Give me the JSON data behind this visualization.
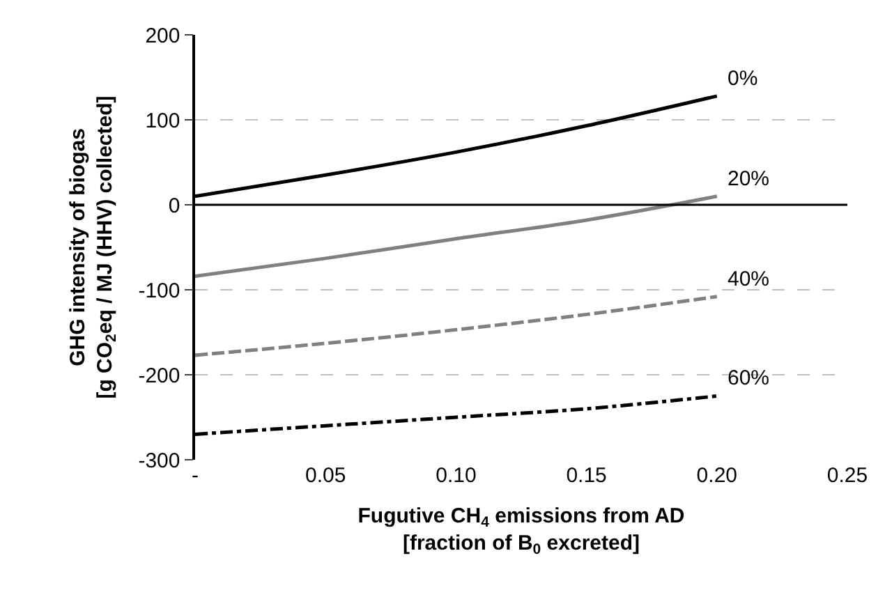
{
  "chart_data": {
    "type": "line",
    "xlabel": "Fugutive CH$_{4}$ emissions from AD\n[fraction of B$_{0}$ excreted]",
    "ylabel": "GHG intensity of biogas\n[g CO$_{2}$eq / MJ (HHV) collected]",
    "x": [
      0,
      0.05,
      0.1,
      0.15,
      0.2
    ],
    "series": [
      {
        "name": "0%",
        "color": "#000000",
        "line_style": "solid",
        "values": [
          10,
          35,
          62,
          93,
          128
        ]
      },
      {
        "name": "20%",
        "color": "#808080",
        "line_style": "solid",
        "values": [
          -84,
          -63,
          -40,
          -18,
          10
        ]
      },
      {
        "name": "40%",
        "color": "#808080",
        "line_style": "dashed",
        "values": [
          -177,
          -163,
          -147,
          -129,
          -108
        ]
      },
      {
        "name": "60%",
        "color": "#000000",
        "line_style": "dashdot",
        "values": [
          -270,
          -260,
          -250,
          -240,
          -225
        ]
      }
    ],
    "xlim": [
      0,
      0.25
    ],
    "xticks": [
      {
        "value": 0,
        "label": "-"
      },
      {
        "value": 0.05,
        "label": "0.05"
      },
      {
        "value": 0.1,
        "label": "0.10"
      },
      {
        "value": 0.15,
        "label": "0.15"
      },
      {
        "value": 0.2,
        "label": "0.20"
      },
      {
        "value": 0.25,
        "label": "0.25"
      }
    ],
    "ylim": [
      -300,
      200
    ],
    "yticks": [
      -300,
      -200,
      -100,
      0,
      100,
      200
    ],
    "ref_lines": [
      {
        "axis": "y",
        "value": 0,
        "color": "#000000",
        "line_style": "solid"
      }
    ],
    "grid": "y",
    "legend": false
  }
}
